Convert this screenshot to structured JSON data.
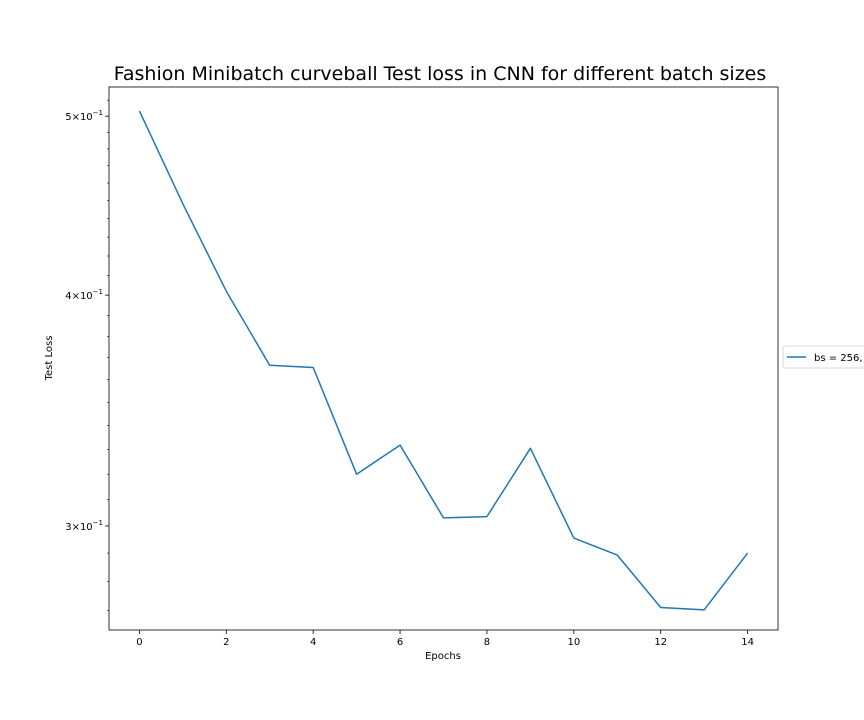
{
  "chart_data": {
    "type": "line",
    "title": "Fashion Minibatch curveball Test loss in CNN for different batch sizes",
    "xlabel": "Epochs",
    "ylabel": "Test Loss",
    "yscale": "log",
    "xlim": [
      -0.7,
      14.7
    ],
    "ylim": [
      0.2635,
      0.5185
    ],
    "xticks": [
      0,
      2,
      4,
      6,
      8,
      10,
      12,
      14
    ],
    "xtick_labels": [
      "0",
      "2",
      "4",
      "6",
      "8",
      "10",
      "12",
      "14"
    ],
    "yticks": [
      {
        "value": 0.5,
        "mantissa": "5",
        "exponent": "−1"
      },
      {
        "value": 0.4,
        "mantissa": "4",
        "exponent": "−1"
      },
      {
        "value": 0.3,
        "mantissa": "3",
        "exponent": "−1"
      }
    ],
    "grid": false,
    "legend_position": "outside-right",
    "series": [
      {
        "name": "bs = 256,",
        "color": "#1f77b4",
        "x": [
          0,
          1,
          2,
          3,
          4,
          5,
          6,
          7,
          8,
          9,
          10,
          11,
          12,
          13,
          14
        ],
        "y": [
          0.5033,
          0.4482,
          0.402,
          0.3665,
          0.3655,
          0.32,
          0.3318,
          0.303,
          0.3035,
          0.3305,
          0.2955,
          0.2893,
          0.271,
          0.2702,
          0.29
        ]
      }
    ]
  }
}
